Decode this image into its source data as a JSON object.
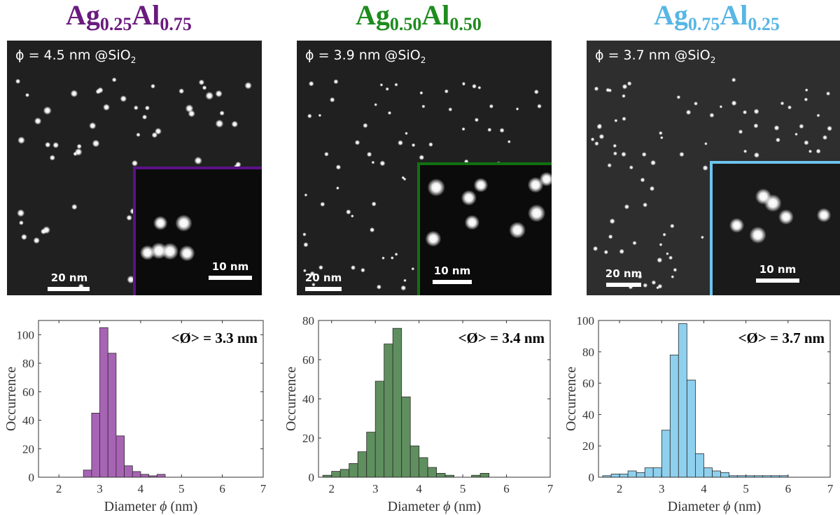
{
  "panels": [
    {
      "title_parts": [
        "Ag",
        "0.25",
        "Al",
        "0.75"
      ],
      "color": "#6a1b7e",
      "inset_color": "#5a1287",
      "stem_label_prefix": "ϕ = 4.5 nm @SiO",
      "stem_label_sub": "2",
      "scalebar_main": "20 nm",
      "scalebar_inset": "10 nm",
      "bar_fill": "#a864b4",
      "annotation": "<Ø> = 3.3 nm"
    },
    {
      "title_parts": [
        "Ag",
        "0.50",
        "Al",
        "0.50"
      ],
      "color": "#1e8c1e",
      "inset_color": "#107010",
      "stem_label_prefix": "ϕ = 3.9 nm @SiO",
      "stem_label_sub": "2",
      "scalebar_main": "20 nm",
      "scalebar_inset": "10 nm",
      "bar_fill": "#5f8f5f",
      "annotation": "<Ø> = 3.4 nm"
    },
    {
      "title_parts": [
        "Ag",
        "0.75",
        "Al",
        "0.25"
      ],
      "color": "#58b6e4",
      "inset_color": "#6cc4ee",
      "stem_label_prefix": "ϕ = 3.7 nm @SiO",
      "stem_label_sub": "2",
      "scalebar_main": "20 nm",
      "scalebar_inset": "10 nm",
      "bar_fill": "#8fd0ee",
      "annotation": "<Ø> = 3.7 nm"
    }
  ],
  "chart_data": [
    {
      "type": "bar",
      "xlabel_main": "Diameter ",
      "xlabel_symbol": "ϕ",
      "xlabel_unit": " (nm)",
      "ylabel": "Occurrence",
      "xlim": [
        1.5,
        7
      ],
      "ylim": [
        0,
        110
      ],
      "xticks": [
        2,
        3,
        4,
        5,
        6,
        7
      ],
      "yticks": [
        0,
        20,
        40,
        60,
        80,
        100
      ],
      "bin_width": 0.2,
      "bins": [
        {
          "x": 2.6,
          "value": 5
        },
        {
          "x": 2.8,
          "value": 45
        },
        {
          "x": 3.0,
          "value": 105
        },
        {
          "x": 3.2,
          "value": 87
        },
        {
          "x": 3.4,
          "value": 29
        },
        {
          "x": 3.6,
          "value": 8
        },
        {
          "x": 3.8,
          "value": 4
        },
        {
          "x": 4.0,
          "value": 2
        },
        {
          "x": 4.2,
          "value": 1
        },
        {
          "x": 4.4,
          "value": 2
        }
      ]
    },
    {
      "type": "bar",
      "xlabel_main": "Diameter ",
      "xlabel_symbol": "ϕ",
      "xlabel_unit": " (nm)",
      "ylabel": "Occurrence",
      "xlim": [
        1.7,
        7
      ],
      "ylim": [
        0,
        80
      ],
      "xticks": [
        2,
        3,
        4,
        5,
        6,
        7
      ],
      "yticks": [
        0,
        20,
        40,
        60,
        80
      ],
      "bin_width": 0.2,
      "bins": [
        {
          "x": 1.8,
          "value": 1
        },
        {
          "x": 2.0,
          "value": 3
        },
        {
          "x": 2.2,
          "value": 4
        },
        {
          "x": 2.4,
          "value": 7
        },
        {
          "x": 2.6,
          "value": 13
        },
        {
          "x": 2.8,
          "value": 23
        },
        {
          "x": 3.0,
          "value": 49
        },
        {
          "x": 3.2,
          "value": 68
        },
        {
          "x": 3.4,
          "value": 76
        },
        {
          "x": 3.6,
          "value": 41
        },
        {
          "x": 3.8,
          "value": 16
        },
        {
          "x": 4.0,
          "value": 10
        },
        {
          "x": 4.2,
          "value": 5
        },
        {
          "x": 4.4,
          "value": 2
        },
        {
          "x": 4.6,
          "value": 1
        },
        {
          "x": 5.2,
          "value": 1
        },
        {
          "x": 5.4,
          "value": 2
        }
      ]
    },
    {
      "type": "bar",
      "xlabel_main": "Diameter ",
      "xlabel_symbol": "ϕ",
      "xlabel_unit": " (nm)",
      "ylabel": "Occurrence",
      "xlim": [
        1.5,
        7
      ],
      "ylim": [
        0,
        100
      ],
      "xticks": [
        2,
        3,
        4,
        5,
        6,
        7
      ],
      "yticks": [
        0,
        20,
        40,
        60,
        80,
        100
      ],
      "bin_width": 0.2,
      "bins": [
        {
          "x": 1.6,
          "value": 1
        },
        {
          "x": 1.8,
          "value": 2
        },
        {
          "x": 2.0,
          "value": 2
        },
        {
          "x": 2.2,
          "value": 4
        },
        {
          "x": 2.4,
          "value": 3
        },
        {
          "x": 2.6,
          "value": 6
        },
        {
          "x": 2.8,
          "value": 6
        },
        {
          "x": 3.0,
          "value": 30
        },
        {
          "x": 3.2,
          "value": 78
        },
        {
          "x": 3.4,
          "value": 98
        },
        {
          "x": 3.6,
          "value": 62
        },
        {
          "x": 3.8,
          "value": 15
        },
        {
          "x": 4.0,
          "value": 6
        },
        {
          "x": 4.2,
          "value": 4
        },
        {
          "x": 4.4,
          "value": 3
        },
        {
          "x": 4.6,
          "value": 1
        },
        {
          "x": 4.8,
          "value": 1
        },
        {
          "x": 5.0,
          "value": 1
        },
        {
          "x": 5.2,
          "value": 1
        },
        {
          "x": 5.4,
          "value": 1
        },
        {
          "x": 5.6,
          "value": 1
        },
        {
          "x": 5.8,
          "value": 1
        }
      ]
    }
  ]
}
